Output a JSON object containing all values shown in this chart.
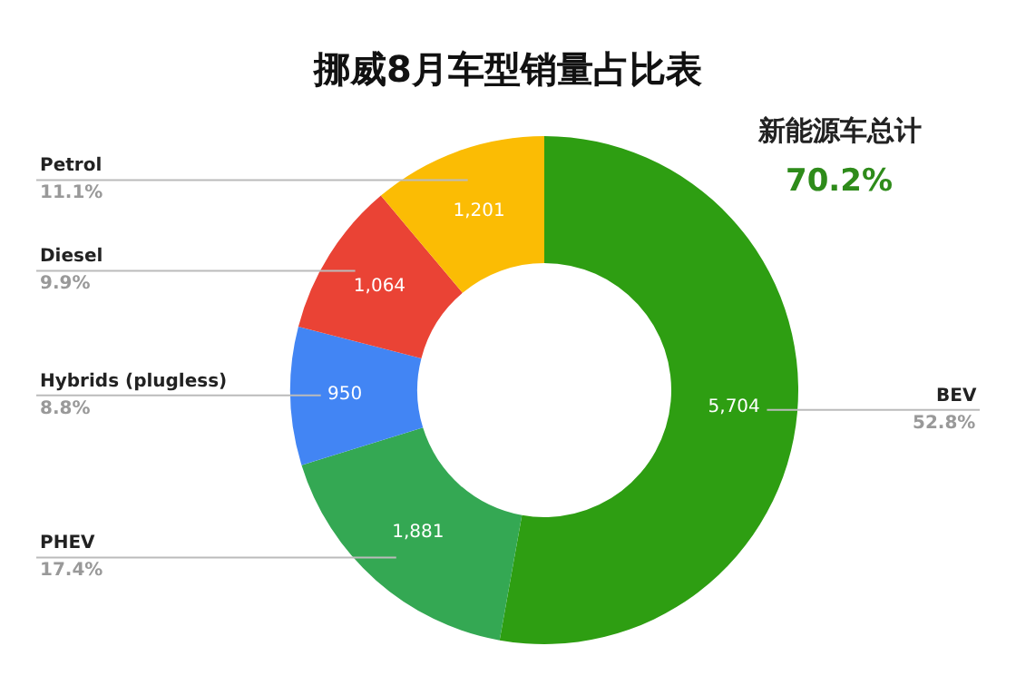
{
  "chart_data": {
    "type": "donut",
    "title": "挪威8月车型销量占比表",
    "categories": [
      "BEV",
      "PHEV",
      "Hybrids (plugless)",
      "Diesel",
      "Petrol"
    ],
    "values": [
      5704,
      1881,
      950,
      1064,
      1201
    ],
    "colors": [
      "#2e9e12",
      "#34a853",
      "#4285f4",
      "#ea4335",
      "#fbbc04"
    ],
    "value_labels": [
      "5,704",
      "1,881",
      "950",
      "1,064",
      "1,201"
    ],
    "legend": false,
    "annotations": [
      "52.8%",
      "17.4%",
      "8.8%",
      "9.9%",
      "11.1%",
      "新能源车总计",
      "70.2%"
    ]
  }
}
